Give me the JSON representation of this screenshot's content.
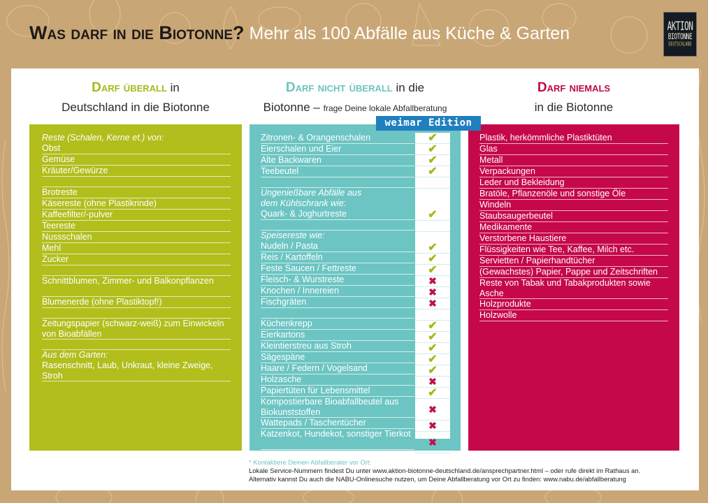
{
  "header": {
    "title_dark": "Was darf in die Biotonne?",
    "title_light": "Mehr als 100 Abfälle aus Küche & Garten",
    "logo": {
      "line1": "AKTION",
      "line2": "BIOTONNE",
      "line3": "DEUTSCHLAND"
    }
  },
  "colors": {
    "background": "#c9a675",
    "green": "#b1be1c",
    "teal": "#6cc5c3",
    "red": "#c5084a",
    "edition_blue": "#1f7fbf",
    "check": "#a3b81a",
    "cross": "#c0114f"
  },
  "edition_badge": "weimar Edition",
  "columns": {
    "green": {
      "heading_key": "Darf überall",
      "heading_rest1": " in",
      "heading_line2": "Deutschland in die Biotonne",
      "items": [
        {
          "type": "head",
          "text": "Reste (Schalen, Kerne et.) von:"
        },
        {
          "type": "item",
          "text": "Obst"
        },
        {
          "type": "item",
          "text": "Gemüse"
        },
        {
          "type": "item",
          "text": "Kräuter/Gewürze"
        },
        {
          "type": "blank",
          "text": ""
        },
        {
          "type": "item",
          "text": "Brotreste"
        },
        {
          "type": "item",
          "text": "Käsereste (ohne Plastikrinde)"
        },
        {
          "type": "item",
          "text": "Kaffeefilter/-pulver"
        },
        {
          "type": "item",
          "text": "Teereste"
        },
        {
          "type": "item",
          "text": "Nussschalen"
        },
        {
          "type": "item",
          "text": "Mehl"
        },
        {
          "type": "item",
          "text": "Zucker"
        },
        {
          "type": "blank",
          "text": ""
        },
        {
          "type": "item2",
          "text": "Schnittblumen, Zimmer- und Balkonpflanzen"
        },
        {
          "type": "item",
          "text": "Blumenerde (ohne Plastiktopf!)"
        },
        {
          "type": "blank",
          "text": ""
        },
        {
          "type": "item2",
          "text": "Zeitungspapier (schwarz-weiß) zum Einwickeln von Bioabfällen"
        },
        {
          "type": "blank",
          "text": ""
        },
        {
          "type": "head",
          "text": "Aus dem Garten:"
        },
        {
          "type": "item2",
          "text": "Rasenschnitt, Laub, Unkraut, kleine Zweige, Stroh"
        }
      ]
    },
    "teal": {
      "heading_key": "Darf nicht überall",
      "heading_rest1": " in die",
      "heading_line2": "Biotonne – ",
      "heading_small": "frage Deine lokale Abfallberatung",
      "items": [
        {
          "type": "item",
          "text": "Zitronen- & Orangenschalen",
          "weimar": "yes"
        },
        {
          "type": "item",
          "text": "Eierschalen und Eier",
          "weimar": "yes"
        },
        {
          "type": "item",
          "text": "Alte Backwaren",
          "weimar": "yes"
        },
        {
          "type": "item",
          "text": "Teebeutel",
          "weimar": "yes"
        },
        {
          "type": "blank",
          "text": ""
        },
        {
          "type": "head",
          "text": "Ungenießbare Abfälle aus"
        },
        {
          "type": "head",
          "text": "dem Kühlschrank wie:"
        },
        {
          "type": "item",
          "text": "Quark- & Joghurtreste",
          "weimar": "yes"
        },
        {
          "type": "blank",
          "text": ""
        },
        {
          "type": "head",
          "text": "Speisereste wie:"
        },
        {
          "type": "item",
          "text": "Nudeln / Pasta",
          "weimar": "yes"
        },
        {
          "type": "item",
          "text": "Reis / Kartoffeln",
          "weimar": "yes"
        },
        {
          "type": "item",
          "text": "Feste Saucen / Fettreste",
          "weimar": "yes"
        },
        {
          "type": "item",
          "text": "Fleisch- & Wurstreste",
          "weimar": "no"
        },
        {
          "type": "item",
          "text": "Knochen / Innereien",
          "weimar": "no"
        },
        {
          "type": "item",
          "text": "Fischgräten",
          "weimar": "no"
        },
        {
          "type": "blank",
          "text": ""
        },
        {
          "type": "item",
          "text": "Küchenkrepp",
          "weimar": "yes"
        },
        {
          "type": "item",
          "text": "Eierkartons",
          "weimar": "yes"
        },
        {
          "type": "item",
          "text": "Kleintierstreu aus Stroh",
          "weimar": "yes"
        },
        {
          "type": "item",
          "text": "Sägespäne",
          "weimar": "yes"
        },
        {
          "type": "item",
          "text": "Haare / Federn / Vogelsand",
          "weimar": "yes"
        },
        {
          "type": "item",
          "text": "Holzasche",
          "weimar": "no"
        },
        {
          "type": "item",
          "text": "Papiertüten für Lebensmittel",
          "weimar": "yes"
        },
        {
          "type": "item2",
          "text": "Kompostierbare Bioabfallbeutel aus Biokunststoffen",
          "weimar": "no"
        },
        {
          "type": "item",
          "text": "Wattepads / Taschentücher",
          "weimar": "no"
        },
        {
          "type": "item2",
          "text": "Katzenkot, Hundekot, sonstiger Tierkot",
          "weimar": "no"
        }
      ]
    },
    "red": {
      "heading_key": "Darf niemals",
      "heading_line2": "in die Biotonne",
      "items": [
        {
          "type": "item",
          "text": "Plastik, herkömmliche Plastiktüten"
        },
        {
          "type": "item",
          "text": "Glas"
        },
        {
          "type": "item",
          "text": "Metall"
        },
        {
          "type": "item",
          "text": "Verpackungen"
        },
        {
          "type": "item",
          "text": "Leder und Bekleidung"
        },
        {
          "type": "item",
          "text": "Bratöle, Pflanzenöle und sonstige Öle"
        },
        {
          "type": "item",
          "text": "Windeln"
        },
        {
          "type": "item",
          "text": "Staubsaugerbeutel"
        },
        {
          "type": "item",
          "text": "Medikamente"
        },
        {
          "type": "item",
          "text": "Verstorbene Haustiere"
        },
        {
          "type": "item",
          "text": "Flüssigkeiten wie Tee, Kaffee, Milch etc."
        },
        {
          "type": "item",
          "text": "Servietten / Papierhandtücher"
        },
        {
          "type": "item",
          "text": "(Gewachstes) Papier, Pappe und Zeitschriften"
        },
        {
          "type": "item2",
          "text": "Reste von Tabak und Tabakprodukten sowie Asche"
        },
        {
          "type": "item",
          "text": "Holzprodukte"
        },
        {
          "type": "item",
          "text": "Holzwolle"
        }
      ]
    }
  },
  "footer": {
    "note": "* Kontaktiere Deinen Abfallberater vor Ort:",
    "line1": "Lokale Service-Nummern findest Du unter www.aktion-biotonne-deutschland.de/ansprechpartner.html – oder rufe direkt im Rathaus an.",
    "line2": "Alternativ kannst Du auch die NABU-Onlinesuche nutzen, um Deine Abfallberatung vor Ort zu finden: www.nabu.de/abfallberatung"
  }
}
